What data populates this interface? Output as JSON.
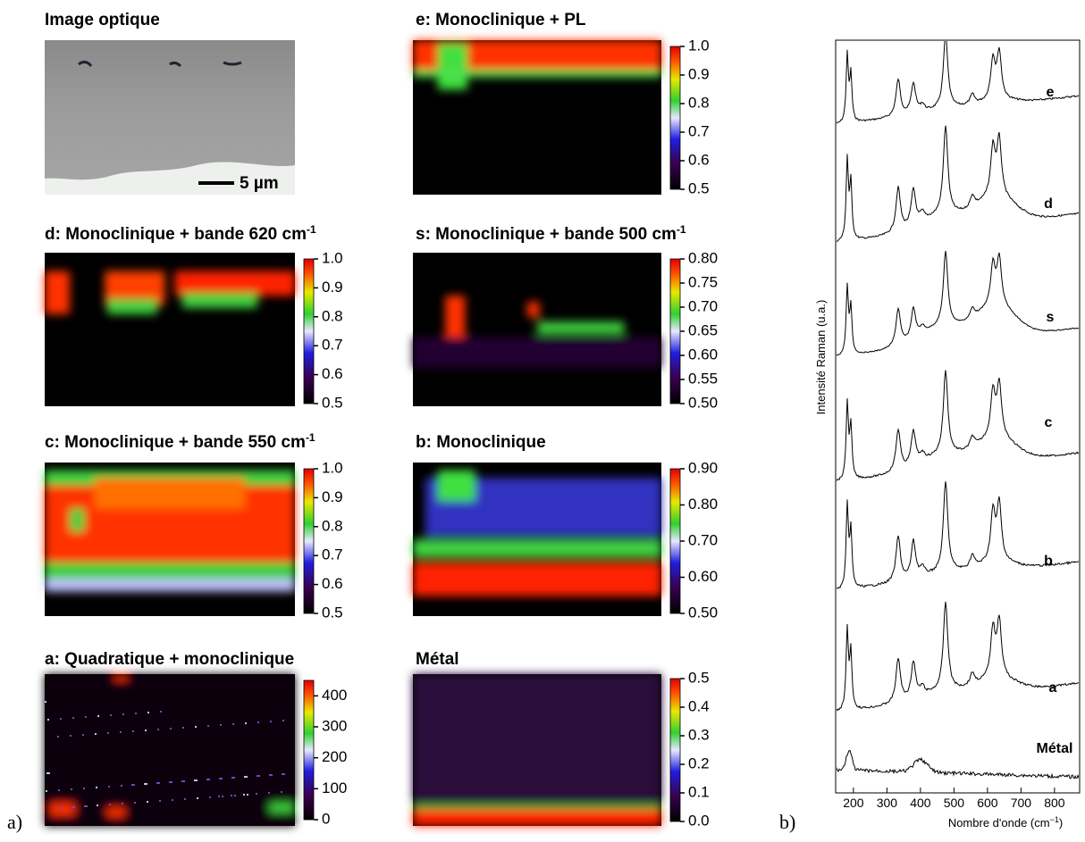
{
  "figure": {
    "label_a": "a)",
    "label_b": "b)"
  },
  "optical": {
    "title": "Image optique",
    "scale_bar": "5 µm"
  },
  "maps": [
    {
      "title": "e: Monoclinique + PL",
      "range": [
        0.5,
        1.0
      ],
      "ticks": [
        {
          "value": 1,
          "label": "1.0"
        },
        0.9,
        0.8,
        0.7,
        0.6,
        0.5
      ]
    },
    {
      "title": "d: Monoclinique + bande 620 cm",
      "title_sup": "-1",
      "range": [
        0.5,
        1.0
      ],
      "ticks": [
        {
          "value": 1,
          "label": "1.0"
        },
        0.9,
        0.8,
        0.7,
        0.6,
        0.5
      ]
    },
    {
      "title": "s: Monoclinique + bande 500 cm",
      "title_sup": "-1",
      "range": [
        0.5,
        0.8
      ],
      "ticks": [
        {
          "value": 0.8,
          "label": "0.80"
        },
        0.75,
        {
          "value": 0.7,
          "label": "0.70"
        },
        0.65,
        {
          "value": 0.6,
          "label": "0.60"
        },
        0.55,
        {
          "value": 0.5,
          "label": "0.50"
        }
      ]
    },
    {
      "title": "c: Monoclinique + bande 550 cm",
      "title_sup": "-1",
      "range": [
        0.5,
        1.0
      ],
      "ticks": [
        {
          "value": 1,
          "label": "1.0"
        },
        0.9,
        0.8,
        0.7,
        0.6,
        0.5
      ]
    },
    {
      "title": "b: Monoclinique",
      "range": [
        0.5,
        0.9
      ],
      "ticks": [
        {
          "value": 0.9,
          "label": "0.90"
        },
        {
          "value": 0.8,
          "label": "0.80"
        },
        {
          "value": 0.7,
          "label": "0.70"
        },
        {
          "value": 0.6,
          "label": "0.60"
        },
        {
          "value": 0.5,
          "label": "0.50"
        }
      ]
    },
    {
      "title": "a: Quadratique + monoclinique",
      "range": [
        0,
        450
      ],
      "ticks": [
        400,
        300,
        200,
        100,
        0
      ]
    },
    {
      "title": "Métal",
      "range": [
        0,
        0.5
      ],
      "ticks": [
        0.5,
        0.4,
        0.3,
        0.2,
        0.1,
        {
          "value": 0,
          "label": "0.0"
        }
      ]
    }
  ],
  "spectra": {
    "y_label": "Intensité Raman (u.a.)",
    "x_label": "Nombre d'onde (cm",
    "x_label_sup": "−1",
    "x_label_end": ")",
    "xlim": [
      147,
      875
    ],
    "xticks": [
      200,
      300,
      400,
      500,
      600,
      700,
      800
    ],
    "labels": [
      "e",
      "d",
      "s",
      "c",
      "b",
      "a",
      "Métal"
    ]
  }
}
